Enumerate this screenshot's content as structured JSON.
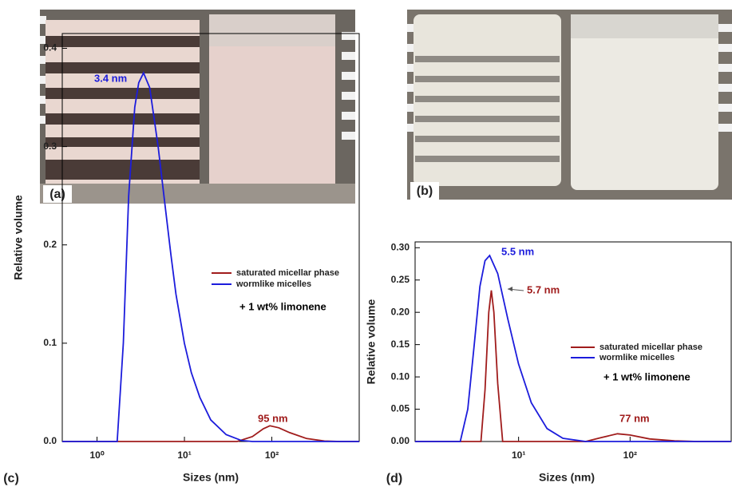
{
  "photos": [
    {
      "label": "(a)"
    },
    {
      "label": "(b)"
    }
  ],
  "chart_data": [
    {
      "type": "line",
      "panel_label": "(c)",
      "xlabel": "Sizes (nm)",
      "ylabel": "Relative volume",
      "xscale": "log",
      "xlim": [
        0.4,
        1000
      ],
      "ylim": [
        0,
        0.415
      ],
      "xticks": [
        {
          "value": 1,
          "label": "10⁰"
        },
        {
          "value": 10,
          "label": "10¹"
        },
        {
          "value": 100,
          "label": "10²"
        }
      ],
      "yticks": [
        {
          "value": 0,
          "label": "0.0"
        },
        0.1,
        0.2,
        0.3,
        0.4
      ],
      "legend": "upper right",
      "series": [
        {
          "name": "saturated micellar phase",
          "color": "#a01c1c",
          "x": [
            0.4,
            40,
            60,
            80,
            95,
            120,
            160,
            250,
            400,
            600,
            1000
          ],
          "values": [
            0,
            0,
            0.005,
            0.013,
            0.016,
            0.014,
            0.009,
            0.003,
            0.0005,
            0,
            0
          ]
        },
        {
          "name": "wormlike micelles",
          "color": "#1c1cdc",
          "x": [
            0.4,
            1.7,
            2.0,
            2.3,
            2.7,
            3.0,
            3.4,
            4.0,
            5,
            6,
            7,
            8,
            10,
            12,
            15,
            20,
            30,
            45,
            60,
            1000
          ],
          "values": [
            0,
            0,
            0.1,
            0.25,
            0.34,
            0.365,
            0.375,
            0.36,
            0.3,
            0.24,
            0.19,
            0.15,
            0.1,
            0.07,
            0.045,
            0.022,
            0.007,
            0.001,
            0,
            0
          ]
        }
      ],
      "annotations": [
        {
          "text": "3.4 nm",
          "color": "#1c1cdc"
        },
        {
          "text": "95 nm",
          "color": "#a01c1c"
        },
        {
          "text": "+ 1 wt% limonene",
          "color": "#000000"
        }
      ]
    },
    {
      "type": "line",
      "panel_label": "(d)",
      "xlabel": "Sizes (nm)",
      "ylabel": "Relative volume",
      "xscale": "log",
      "xlim": [
        1.18,
        807
      ],
      "ylim": [
        0,
        0.309
      ],
      "xticks": [
        {
          "value": 10,
          "label": "10¹"
        },
        {
          "value": 100,
          "label": "10²"
        }
      ],
      "yticks": [
        {
          "value": 0,
          "label": "0.00"
        },
        0.05,
        {
          "value": 0.1,
          "label": "0.10"
        },
        0.15,
        {
          "value": 0.2,
          "label": "0.20"
        },
        0.25,
        {
          "value": 0.3,
          "label": "0.30"
        }
      ],
      "legend": "center right",
      "series": [
        {
          "name": "saturated micellar phase",
          "color": "#a01c1c",
          "x": [
            1.18,
            4.6,
            5.0,
            5.4,
            5.7,
            6.0,
            6.5,
            7.2,
            40,
            55,
            77,
            100,
            150,
            250,
            400,
            807
          ],
          "values": [
            0,
            0,
            0.08,
            0.2,
            0.234,
            0.2,
            0.09,
            0,
            0,
            0.006,
            0.012,
            0.01,
            0.004,
            0.001,
            0,
            0
          ]
        },
        {
          "name": "wormlike micelles",
          "color": "#1c1cdc",
          "x": [
            1.18,
            3.0,
            3.5,
            4.0,
            4.5,
            5.0,
            5.5,
            6.5,
            8,
            10,
            13,
            18,
            25,
            40,
            807
          ],
          "values": [
            0,
            0,
            0.05,
            0.15,
            0.24,
            0.28,
            0.288,
            0.26,
            0.19,
            0.12,
            0.06,
            0.02,
            0.005,
            0,
            0
          ]
        }
      ],
      "annotations": [
        {
          "text": "5.5 nm",
          "color": "#1c1cdc"
        },
        {
          "text": "5.7 nm",
          "color": "#a01c1c"
        },
        {
          "text": "77 nm",
          "color": "#a01c1c"
        },
        {
          "text": "+ 1 wt% limonene",
          "color": "#000000"
        }
      ]
    }
  ]
}
